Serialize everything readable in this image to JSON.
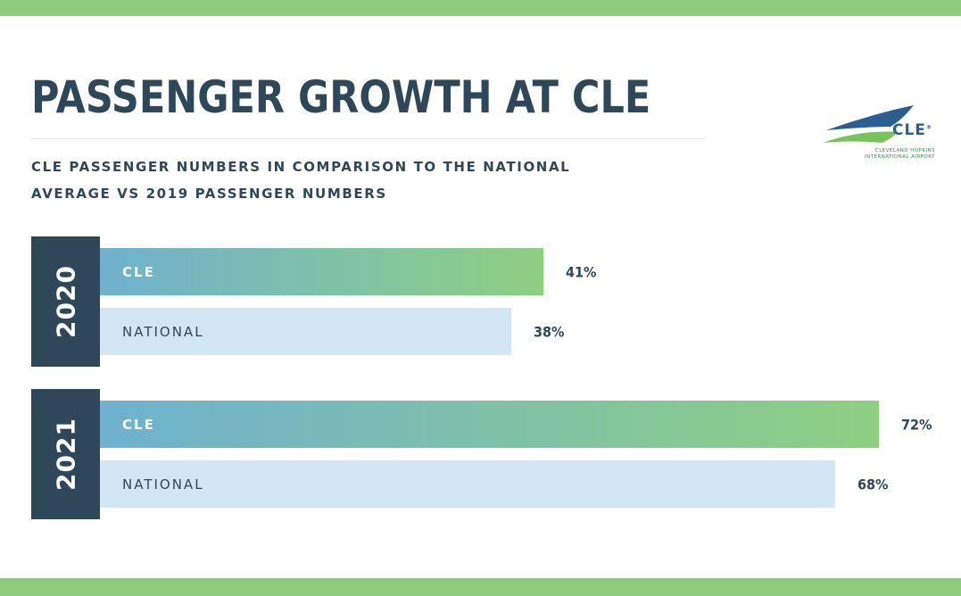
{
  "chart_data": {
    "type": "bar",
    "orientation": "horizontal",
    "title": "PASSENGER GROWTH AT CLE",
    "subtitle_lines": [
      "CLE PASSENGER NUMBERS IN COMPARISON TO THE NATIONAL",
      "AVERAGE VS 2019 PASSENGER NUMBERS"
    ],
    "groups": [
      {
        "year": "2020",
        "bars": [
          {
            "label": "CLE",
            "value": 41,
            "value_label": "41%"
          },
          {
            "label": "NATIONAL",
            "value": 38,
            "value_label": "38%"
          }
        ]
      },
      {
        "year": "2021",
        "bars": [
          {
            "label": "CLE",
            "value": 72,
            "value_label": "72%"
          },
          {
            "label": "NATIONAL",
            "value": 68,
            "value_label": "68%"
          }
        ]
      }
    ],
    "xlim": [
      0,
      100
    ],
    "grid": false,
    "legend": "none"
  },
  "logo": {
    "wordmark": "CLE",
    "registered": "®",
    "tagline_lines": [
      "CLEVELAND HOPKINS",
      "INTERNATIONAL AIRPORT"
    ],
    "icon": "airport-swoosh-icon"
  },
  "colors": {
    "navy": "#2f4859",
    "green": "#8fcb7e",
    "cle_gradient_start": "#6fb1cf",
    "cle_gradient_end": "#8fcf82",
    "national_bar": "#d3e6f4"
  }
}
